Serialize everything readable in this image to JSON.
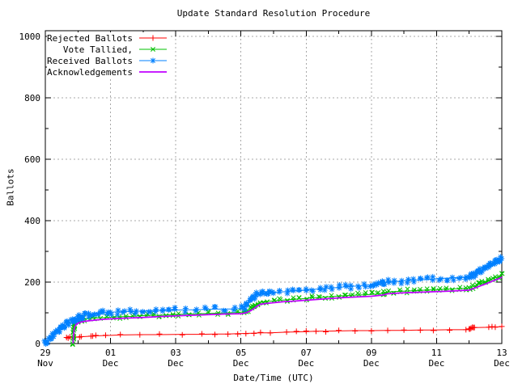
{
  "chart_data": {
    "type": "line",
    "title": "Update Standard Resolution Procedure",
    "xlabel": "Date/Time (UTC)",
    "ylabel": "Ballots",
    "legend_position": "top-left",
    "grid": {
      "color": "#a8a8a8",
      "style": "dotted"
    },
    "x_axis": {
      "unit": "days since 29 Nov 00:00 UTC",
      "range_days": 14,
      "ticks": [
        {
          "day": 0,
          "top": "29",
          "bottom": "Nov"
        },
        {
          "day": 2,
          "top": "01",
          "bottom": "Dec"
        },
        {
          "day": 4,
          "top": "03",
          "bottom": "Dec"
        },
        {
          "day": 6,
          "top": "05",
          "bottom": "Dec"
        },
        {
          "day": 8,
          "top": "07",
          "bottom": "Dec"
        },
        {
          "day": 10,
          "top": "09",
          "bottom": "Dec"
        },
        {
          "day": 12,
          "top": "11",
          "bottom": "Dec"
        },
        {
          "day": 14,
          "top": "13",
          "bottom": "Dec"
        }
      ],
      "minor_tick_days": [
        1,
        3,
        5,
        7,
        9,
        11,
        13
      ],
      "grid_days": [
        2,
        4,
        6,
        8,
        10,
        12
      ]
    },
    "y_axis": {
      "min": 0,
      "max": 1000,
      "ticks": [
        {
          "value": 0,
          "label": "0"
        },
        {
          "value": 200,
          "label": "200"
        },
        {
          "value": 400,
          "label": "400"
        },
        {
          "value": 600,
          "label": "600"
        },
        {
          "value": 800,
          "label": "800"
        },
        {
          "value": 1000,
          "label": "1000"
        }
      ],
      "minor_ticks": [
        100,
        300,
        500,
        700,
        900
      ],
      "grid_values": [
        200,
        400,
        600,
        800,
        1000
      ]
    },
    "series": [
      {
        "name": "Rejected Ballots",
        "color": "#ff0000",
        "marker": "plus",
        "points": [
          [
            0.65,
            18
          ],
          [
            0.7,
            20
          ],
          [
            0.75,
            20
          ],
          [
            0.9,
            21
          ],
          [
            1.05,
            22
          ],
          [
            1.1,
            22
          ],
          [
            1.4,
            24
          ],
          [
            1.45,
            24
          ],
          [
            1.55,
            25
          ],
          [
            1.85,
            26
          ],
          [
            2.3,
            28
          ],
          [
            2.9,
            29
          ],
          [
            3.5,
            29
          ],
          [
            4.2,
            30
          ],
          [
            4.8,
            30
          ],
          [
            5.2,
            31
          ],
          [
            5.6,
            31
          ],
          [
            5.9,
            32
          ],
          [
            6.15,
            33
          ],
          [
            6.4,
            34
          ],
          [
            6.6,
            35
          ],
          [
            6.9,
            35
          ],
          [
            7.4,
            37
          ],
          [
            7.7,
            38
          ],
          [
            8.0,
            39
          ],
          [
            8.3,
            40
          ],
          [
            8.6,
            40
          ],
          [
            9.0,
            41
          ],
          [
            9.5,
            42
          ],
          [
            10.0,
            42
          ],
          [
            10.5,
            43
          ],
          [
            11.0,
            43
          ],
          [
            11.5,
            44
          ],
          [
            11.9,
            44
          ],
          [
            12.4,
            45
          ],
          [
            12.9,
            45
          ],
          [
            13.0,
            47
          ],
          [
            13.03,
            49
          ],
          [
            13.06,
            50
          ],
          [
            13.1,
            51
          ],
          [
            13.13,
            52
          ],
          [
            13.16,
            52
          ],
          [
            13.6,
            53
          ],
          [
            13.7,
            54
          ],
          [
            13.8,
            54
          ],
          [
            14.0,
            55
          ]
        ]
      },
      {
        "name": "Vote Tallied,",
        "color": "#00c000",
        "marker": "x",
        "points": [
          [
            0.84,
            2
          ],
          [
            0.85,
            12
          ],
          [
            0.855,
            22
          ],
          [
            0.86,
            32
          ],
          [
            0.865,
            40
          ],
          [
            0.87,
            48
          ],
          [
            0.875,
            54
          ],
          [
            0.88,
            59
          ],
          [
            0.89,
            64
          ],
          [
            0.9,
            68
          ],
          [
            0.95,
            72
          ],
          [
            1.0,
            75
          ],
          [
            1.1,
            78
          ],
          [
            1.2,
            80
          ],
          [
            1.35,
            82
          ],
          [
            1.5,
            83
          ],
          [
            1.7,
            84
          ],
          [
            1.9,
            85
          ],
          [
            2.1,
            86
          ],
          [
            2.3,
            87
          ],
          [
            2.5,
            88
          ],
          [
            2.7,
            89
          ],
          [
            2.9,
            90
          ],
          [
            3.1,
            91
          ],
          [
            3.3,
            92
          ],
          [
            3.5,
            92
          ],
          [
            3.7,
            93
          ],
          [
            3.9,
            94
          ],
          [
            4.1,
            95
          ],
          [
            4.4,
            96
          ],
          [
            4.7,
            97
          ],
          [
            5.0,
            98
          ],
          [
            5.3,
            99
          ],
          [
            5.6,
            100
          ],
          [
            5.9,
            101
          ],
          [
            6.1,
            103
          ],
          [
            6.2,
            107
          ],
          [
            6.3,
            112
          ],
          [
            6.35,
            117
          ],
          [
            6.4,
            122
          ],
          [
            6.45,
            127
          ],
          [
            6.5,
            131
          ],
          [
            6.6,
            134
          ],
          [
            6.7,
            136
          ],
          [
            6.8,
            137
          ],
          [
            7.0,
            139
          ],
          [
            7.2,
            141
          ],
          [
            7.4,
            142
          ],
          [
            7.6,
            144
          ],
          [
            7.8,
            145
          ],
          [
            8.0,
            147
          ],
          [
            8.2,
            149
          ],
          [
            8.4,
            150
          ],
          [
            8.6,
            152
          ],
          [
            8.8,
            153
          ],
          [
            9.0,
            155
          ],
          [
            9.2,
            156
          ],
          [
            9.4,
            157
          ],
          [
            9.6,
            158
          ],
          [
            9.8,
            159
          ],
          [
            10.0,
            160
          ],
          [
            10.2,
            161
          ],
          [
            10.35,
            164
          ],
          [
            10.4,
            166
          ],
          [
            10.5,
            168
          ],
          [
            10.7,
            169
          ],
          [
            10.9,
            170
          ],
          [
            11.1,
            171
          ],
          [
            11.3,
            172
          ],
          [
            11.5,
            173
          ],
          [
            11.7,
            174
          ],
          [
            11.9,
            175
          ],
          [
            12.1,
            176
          ],
          [
            12.3,
            177
          ],
          [
            12.5,
            178
          ],
          [
            12.7,
            179
          ],
          [
            12.9,
            180
          ],
          [
            13.0,
            181
          ],
          [
            13.1,
            185
          ],
          [
            13.2,
            189
          ],
          [
            13.3,
            193
          ],
          [
            13.4,
            198
          ],
          [
            13.5,
            202
          ],
          [
            13.6,
            206
          ],
          [
            13.7,
            210
          ],
          [
            13.8,
            214
          ],
          [
            13.9,
            218
          ],
          [
            14.0,
            222
          ]
        ]
      },
      {
        "name": "Received Ballots",
        "color": "#0080ff",
        "marker": "asterisk",
        "points": [
          [
            0,
            1
          ],
          [
            0.05,
            5
          ],
          [
            0.1,
            9
          ],
          [
            0.15,
            14
          ],
          [
            0.2,
            19
          ],
          [
            0.25,
            25
          ],
          [
            0.3,
            31
          ],
          [
            0.35,
            37
          ],
          [
            0.4,
            43
          ],
          [
            0.45,
            48
          ],
          [
            0.5,
            52
          ],
          [
            0.55,
            56
          ],
          [
            0.6,
            59
          ],
          [
            0.65,
            62
          ],
          [
            0.7,
            65
          ],
          [
            0.75,
            68
          ],
          [
            0.8,
            71
          ],
          [
            0.85,
            74
          ],
          [
            0.9,
            77
          ],
          [
            0.95,
            80
          ],
          [
            1.0,
            83
          ],
          [
            1.05,
            85
          ],
          [
            1.1,
            87
          ],
          [
            1.15,
            89
          ],
          [
            1.2,
            91
          ],
          [
            1.3,
            94
          ],
          [
            1.4,
            96
          ],
          [
            1.5,
            98
          ],
          [
            1.6,
            99
          ],
          [
            1.7,
            100
          ],
          [
            1.8,
            101
          ],
          [
            1.9,
            102
          ],
          [
            2.0,
            102
          ],
          [
            2.2,
            103
          ],
          [
            2.4,
            104
          ],
          [
            2.6,
            105
          ],
          [
            2.8,
            105
          ],
          [
            3.0,
            106
          ],
          [
            3.2,
            107
          ],
          [
            3.4,
            107
          ],
          [
            3.6,
            108
          ],
          [
            3.8,
            108
          ],
          [
            4.0,
            109
          ],
          [
            4.3,
            110
          ],
          [
            4.6,
            110
          ],
          [
            4.9,
            111
          ],
          [
            5.2,
            112
          ],
          [
            5.5,
            112
          ],
          [
            5.8,
            113
          ],
          [
            6.0,
            114
          ],
          [
            6.1,
            117
          ],
          [
            6.15,
            122
          ],
          [
            6.2,
            128
          ],
          [
            6.25,
            134
          ],
          [
            6.3,
            140
          ],
          [
            6.35,
            146
          ],
          [
            6.4,
            151
          ],
          [
            6.45,
            155
          ],
          [
            6.5,
            158
          ],
          [
            6.6,
            161
          ],
          [
            6.7,
            163
          ],
          [
            6.8,
            164
          ],
          [
            6.9,
            165
          ],
          [
            7.0,
            166
          ],
          [
            7.2,
            168
          ],
          [
            7.4,
            169
          ],
          [
            7.6,
            171
          ],
          [
            7.8,
            172
          ],
          [
            8.0,
            174
          ],
          [
            8.2,
            176
          ],
          [
            8.4,
            178
          ],
          [
            8.6,
            180
          ],
          [
            8.8,
            181
          ],
          [
            9.0,
            183
          ],
          [
            9.2,
            185
          ],
          [
            9.4,
            186
          ],
          [
            9.6,
            188
          ],
          [
            9.8,
            189
          ],
          [
            10.0,
            191
          ],
          [
            10.1,
            192
          ],
          [
            10.2,
            193
          ],
          [
            10.3,
            194
          ],
          [
            10.35,
            197
          ],
          [
            10.4,
            199
          ],
          [
            10.5,
            201
          ],
          [
            10.7,
            202
          ],
          [
            10.9,
            203
          ],
          [
            11.1,
            205
          ],
          [
            11.3,
            206
          ],
          [
            11.5,
            207
          ],
          [
            11.7,
            209
          ],
          [
            11.9,
            210
          ],
          [
            12.1,
            212
          ],
          [
            12.3,
            213
          ],
          [
            12.5,
            214
          ],
          [
            12.7,
            215
          ],
          [
            12.9,
            216
          ],
          [
            13.0,
            218
          ],
          [
            13.05,
            220
          ],
          [
            13.1,
            223
          ],
          [
            13.15,
            226
          ],
          [
            13.2,
            229
          ],
          [
            13.25,
            232
          ],
          [
            13.3,
            235
          ],
          [
            13.35,
            238
          ],
          [
            13.4,
            241
          ],
          [
            13.45,
            244
          ],
          [
            13.5,
            247
          ],
          [
            13.55,
            250
          ],
          [
            13.6,
            253
          ],
          [
            13.65,
            256
          ],
          [
            13.7,
            259
          ],
          [
            13.75,
            262
          ],
          [
            13.8,
            264
          ],
          [
            13.85,
            267
          ],
          [
            13.9,
            270
          ],
          [
            13.95,
            273
          ],
          [
            14.0,
            276
          ]
        ]
      },
      {
        "name": "Acknowledgements",
        "color": "#c000ff",
        "marker": "none",
        "points": [
          [
            0.85,
            0
          ],
          [
            0.87,
            30
          ],
          [
            0.88,
            45
          ],
          [
            0.9,
            55
          ],
          [
            0.95,
            62
          ],
          [
            1.0,
            66
          ],
          [
            1.1,
            70
          ],
          [
            1.25,
            73
          ],
          [
            1.5,
            76
          ],
          [
            1.8,
            79
          ],
          [
            2.1,
            81
          ],
          [
            2.5,
            83
          ],
          [
            3.0,
            85
          ],
          [
            3.5,
            88
          ],
          [
            4.0,
            90
          ],
          [
            4.5,
            92
          ],
          [
            5.0,
            94
          ],
          [
            5.5,
            96
          ],
          [
            6.0,
            97
          ],
          [
            6.15,
            100
          ],
          [
            6.3,
            107
          ],
          [
            6.4,
            114
          ],
          [
            6.5,
            122
          ],
          [
            6.6,
            128
          ],
          [
            6.8,
            131
          ],
          [
            7.0,
            133
          ],
          [
            7.3,
            136
          ],
          [
            7.6,
            138
          ],
          [
            8.0,
            141
          ],
          [
            8.4,
            144
          ],
          [
            8.8,
            147
          ],
          [
            9.2,
            150
          ],
          [
            9.6,
            152
          ],
          [
            10.0,
            154
          ],
          [
            10.35,
            158
          ],
          [
            10.5,
            162
          ],
          [
            11.0,
            165
          ],
          [
            11.5,
            167
          ],
          [
            12.0,
            169
          ],
          [
            12.5,
            171
          ],
          [
            13.0,
            174
          ],
          [
            13.1,
            178
          ],
          [
            13.3,
            186
          ],
          [
            13.5,
            194
          ],
          [
            13.7,
            203
          ],
          [
            13.9,
            211
          ],
          [
            14.0,
            216
          ]
        ]
      }
    ]
  }
}
